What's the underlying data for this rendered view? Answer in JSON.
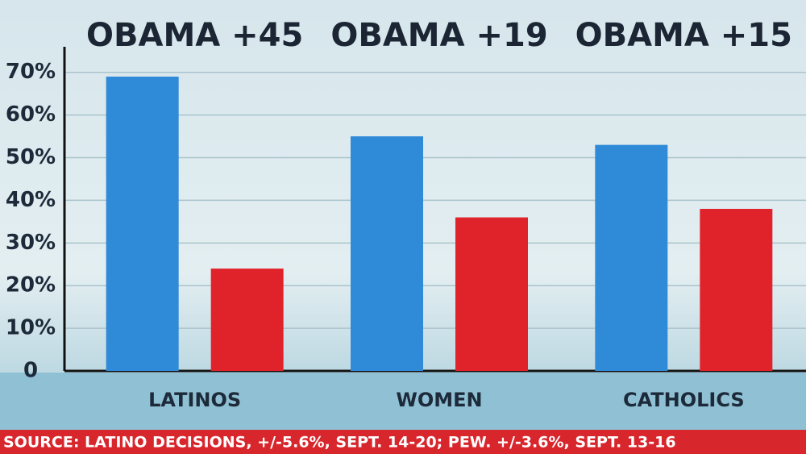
{
  "chart_data": {
    "type": "bar",
    "annotations": [
      "OBAMA +45",
      "OBAMA +19",
      "OBAMA +15"
    ],
    "categories": [
      "LATINOS",
      "WOMEN",
      "CATHOLICS"
    ],
    "series": [
      {
        "color": "#2f8ad8",
        "values": [
          69,
          55,
          53
        ]
      },
      {
        "color": "#e0232b",
        "values": [
          24,
          36,
          38
        ]
      }
    ],
    "ylim": [
      0,
      76
    ],
    "yticks": [
      0,
      {
        "value": 10,
        "label": "10%"
      },
      {
        "value": 20,
        "label": "20%"
      },
      {
        "value": 30,
        "label": "30%"
      },
      {
        "value": 40,
        "label": "40%"
      },
      {
        "value": 50,
        "label": "50%"
      },
      {
        "value": 60,
        "label": "60%"
      },
      {
        "value": 70,
        "label": "70%"
      }
    ],
    "grid": true,
    "source": "SOURCE: LATINO DECISIONS, +/-5.6%, SEPT. 14-20;  PEW. +/-3.6%, SEPT. 13-16"
  }
}
